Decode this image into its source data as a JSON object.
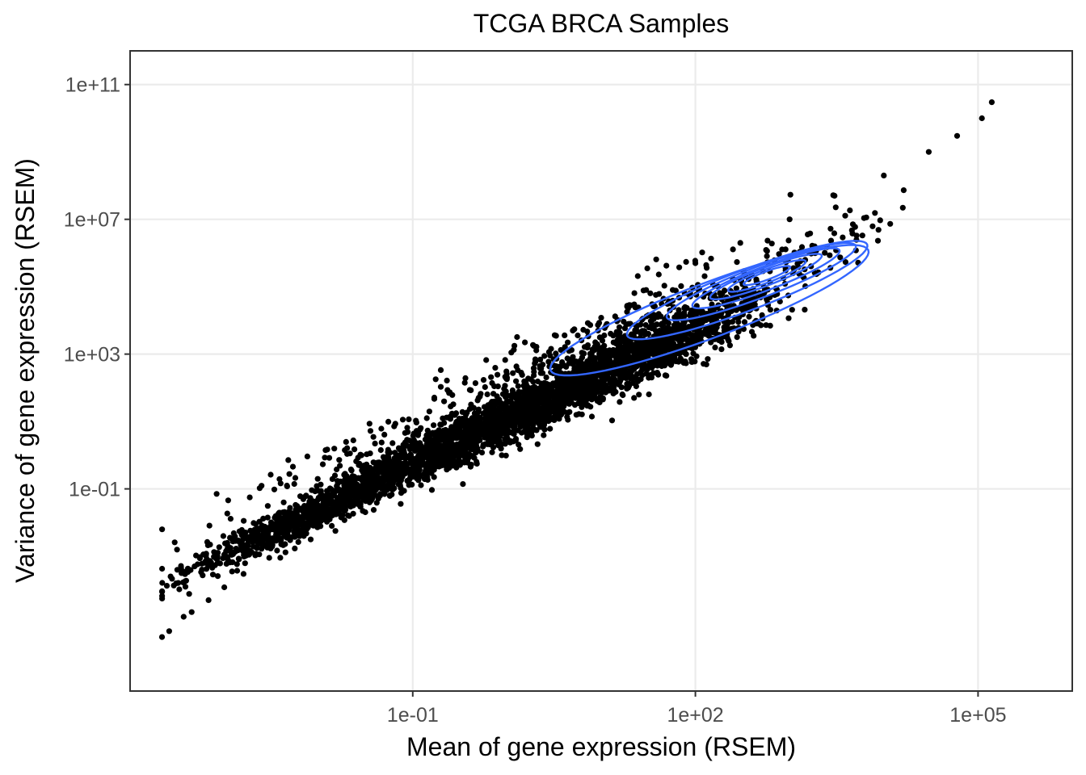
{
  "chart_data": {
    "type": "scatter",
    "title": "TCGA BRCA Samples",
    "xlabel": "Mean of gene expression (RSEM)",
    "ylabel": "Variance of gene expression (RSEM)",
    "x_scale": "log10",
    "y_scale": "log10",
    "xlim": [
      0.0001,
      1000000
    ],
    "ylim": [
      1e-07,
      1000000000000.0
    ],
    "x_ticks": [
      {
        "value": 0.1,
        "label": "1e-01"
      },
      {
        "value": 100,
        "label": "1e+02"
      },
      {
        "value": 100000,
        "label": "1e+05"
      }
    ],
    "y_ticks": [
      {
        "value": 0.1,
        "label": "1e-01"
      },
      {
        "value": 1000,
        "label": "1e+03"
      },
      {
        "value": 10000000,
        "label": "1e+07"
      },
      {
        "value": 100000000000,
        "label": "1e+11"
      }
    ],
    "grid": true,
    "point_color": "#000000",
    "contour_color": "#3366FF",
    "density_center": {
      "x": 500,
      "y": 200000
    },
    "sample_points": [
      {
        "x": 0.000218,
        "y": 4e-06
      },
      {
        "x": 0.00026,
        "y": 6e-06
      },
      {
        "x": 0.00037,
        "y": 1.6e-05
      },
      {
        "x": 0.00045,
        "y": 2.2e-05
      },
      {
        "x": 0.00068,
        "y": 5e-05
      },
      {
        "x": 0.001,
        "y": 0.00012
      },
      {
        "x": 0.0016,
        "y": 0.0003
      },
      {
        "x": 0.003,
        "y": 0.0009
      },
      {
        "x": 0.005,
        "y": 0.003
      },
      {
        "x": 0.009,
        "y": 0.01
      },
      {
        "x": 0.015,
        "y": 0.04
      },
      {
        "x": 0.03,
        "y": 0.12
      },
      {
        "x": 0.06,
        "y": 0.6
      },
      {
        "x": 0.1,
        "y": 2
      },
      {
        "x": 0.2,
        "y": 8
      },
      {
        "x": 0.5,
        "y": 50
      },
      {
        "x": 1,
        "y": 200
      },
      {
        "x": 2,
        "y": 700
      },
      {
        "x": 5,
        "y": 5000
      },
      {
        "x": 10,
        "y": 12000
      },
      {
        "x": 30,
        "y": 80000
      },
      {
        "x": 100,
        "y": 500000
      },
      {
        "x": 300,
        "y": 2000000
      },
      {
        "x": 1000,
        "y": 10000000
      },
      {
        "x": 3000,
        "y": 50000000
      },
      {
        "x": 10000,
        "y": 200000000
      },
      {
        "x": 30000,
        "y": 1000000000
      },
      {
        "x": 60000,
        "y": 3000000000
      },
      {
        "x": 110000,
        "y": 10000000000
      },
      {
        "x": 140000,
        "y": 30000000000
      }
    ]
  }
}
